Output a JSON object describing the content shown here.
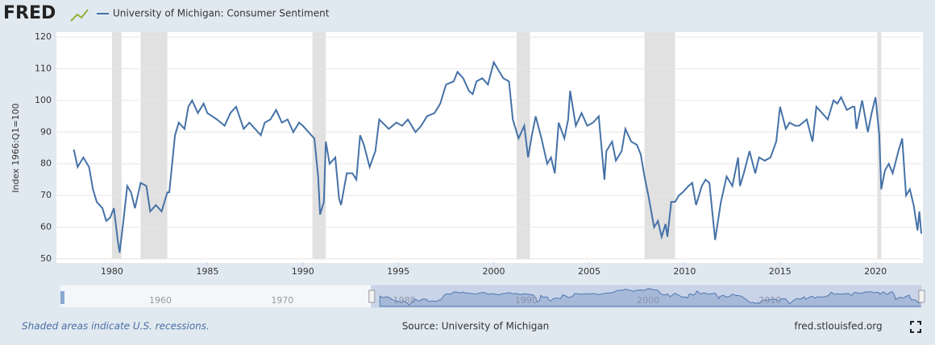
{
  "logo": "FRED",
  "chart_data": {
    "type": "line",
    "y_label": "Index 1966:Q1=100",
    "xlim": [
      1977.3,
      2022.4
    ],
    "xticks": [
      1980,
      1985,
      1990,
      1995,
      2000,
      2005,
      2010,
      2015,
      2020
    ],
    "ylim": [
      50,
      120
    ],
    "yticks": [
      50,
      60,
      70,
      80,
      90,
      100,
      110,
      120
    ],
    "grid": true,
    "recessions": [
      [
        1980.0,
        1980.5
      ],
      [
        1981.5,
        1982.9
      ],
      [
        1990.5,
        1991.2
      ],
      [
        2001.2,
        2001.9
      ],
      [
        2007.9,
        2009.5
      ],
      [
        2020.1,
        2020.3
      ]
    ],
    "x": [
      1978.0,
      1978.2,
      1978.5,
      1978.8,
      1979.0,
      1979.2,
      1979.5,
      1979.7,
      1979.9,
      1980.1,
      1980.3,
      1980.4,
      1980.6,
      1980.8,
      1981.0,
      1981.2,
      1981.5,
      1981.8,
      1982.0,
      1982.3,
      1982.6,
      1982.9,
      1983.0,
      1983.3,
      1983.5,
      1983.8,
      1984.0,
      1984.2,
      1984.5,
      1984.8,
      1985.0,
      1985.5,
      1985.9,
      1986.2,
      1986.5,
      1986.9,
      1987.2,
      1987.5,
      1987.8,
      1988.0,
      1988.3,
      1988.6,
      1988.9,
      1989.2,
      1989.5,
      1989.8,
      1990.0,
      1990.3,
      1990.6,
      1990.8,
      1990.9,
      1991.1,
      1991.2,
      1991.4,
      1991.7,
      1991.9,
      1992.0,
      1992.3,
      1992.6,
      1992.8,
      1993.0,
      1993.2,
      1993.5,
      1993.8,
      1994.0,
      1994.5,
      1994.9,
      1995.2,
      1995.5,
      1995.9,
      1996.2,
      1996.5,
      1996.9,
      1997.2,
      1997.5,
      1997.9,
      1998.1,
      1998.4,
      1998.7,
      1998.9,
      1999.1,
      1999.4,
      1999.7,
      2000.0,
      2000.2,
      2000.5,
      2000.8,
      2001.0,
      2001.3,
      2001.6,
      2001.8,
      2002.0,
      2002.2,
      2002.5,
      2002.8,
      2003.0,
      2003.2,
      2003.4,
      2003.7,
      2003.9,
      2004.0,
      2004.3,
      2004.6,
      2004.9,
      2005.2,
      2005.5,
      2005.8,
      2005.9,
      2006.2,
      2006.4,
      2006.7,
      2006.9,
      2007.2,
      2007.5,
      2007.7,
      2007.9,
      2008.1,
      2008.4,
      2008.6,
      2008.8,
      2009.0,
      2009.1,
      2009.3,
      2009.5,
      2009.7,
      2009.9,
      2010.2,
      2010.4,
      2010.6,
      2010.9,
      2011.1,
      2011.3,
      2011.6,
      2011.9,
      2012.2,
      2012.5,
      2012.8,
      2012.9,
      2013.1,
      2013.4,
      2013.7,
      2013.9,
      2014.2,
      2014.5,
      2014.8,
      2015.0,
      2015.3,
      2015.5,
      2015.8,
      2016.0,
      2016.4,
      2016.7,
      2016.9,
      2017.2,
      2017.5,
      2017.8,
      2018.0,
      2018.2,
      2018.5,
      2018.8,
      2018.9,
      2019.0,
      2019.3,
      2019.6,
      2019.8,
      2020.0,
      2020.2,
      2020.3,
      2020.5,
      2020.7,
      2020.9,
      2021.2,
      2021.4,
      2021.6,
      2021.8,
      2022.0,
      2022.2,
      2022.3,
      2022.4
    ],
    "series": [
      {
        "name": "University of Michigan: Consumer Sentiment",
        "color": "#4572a7",
        "values": [
          84.5,
          79,
          82,
          79,
          72,
          68,
          66,
          62,
          63,
          66,
          56,
          52,
          62,
          73,
          71,
          66,
          74,
          73,
          65,
          67,
          65,
          71,
          71,
          89,
          93,
          91,
          98,
          100,
          96,
          99,
          96,
          94,
          92,
          96,
          98,
          91,
          93,
          91,
          89,
          93,
          94,
          97,
          93,
          94,
          90,
          93,
          92,
          90,
          88,
          76,
          64,
          68,
          87,
          80,
          82,
          69,
          67,
          77,
          77,
          75,
          89,
          86,
          79,
          84,
          94,
          91,
          93,
          92,
          94,
          90,
          92,
          95,
          96,
          99,
          105,
          106,
          109,
          107,
          103,
          102,
          106,
          107,
          105,
          112,
          110,
          107,
          106,
          94,
          88,
          92,
          82,
          89,
          95,
          88,
          80,
          82,
          77,
          93,
          88,
          94,
          103,
          92,
          96,
          92,
          93,
          95,
          75,
          84,
          87,
          81,
          84,
          91,
          87,
          86,
          83,
          76,
          70,
          60,
          62,
          57,
          61,
          57,
          68,
          68,
          70,
          71,
          73,
          74,
          67,
          73,
          75,
          74,
          56,
          68,
          76,
          73,
          82,
          73,
          77,
          84,
          77,
          82,
          81,
          82,
          87,
          98,
          91,
          93,
          92,
          92,
          94,
          87,
          98,
          96,
          94,
          100,
          99,
          101,
          97,
          98,
          98,
          91,
          100,
          90,
          96,
          101,
          89,
          72,
          78,
          80,
          77,
          84,
          88,
          70,
          72,
          67,
          59,
          65,
          58
        ]
      }
    ],
    "navigator": {
      "xlim": [
        1951.8,
        2022.4
      ],
      "xticks": [
        1960,
        1970,
        1980,
        1990,
        2000,
        2010
      ]
    }
  },
  "footer": {
    "note": "Shaded areas indicate U.S. recessions.",
    "source": "Source: University of Michigan",
    "site": "fred.stlouisfed.org"
  }
}
